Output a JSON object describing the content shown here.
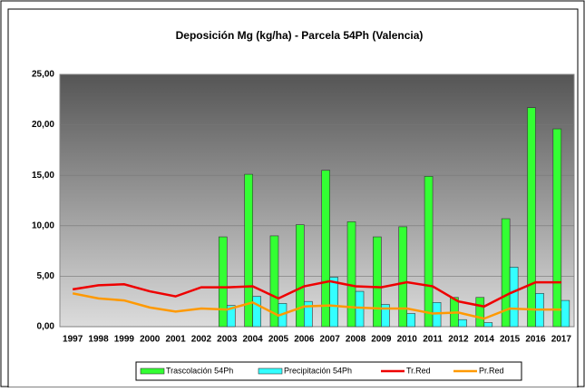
{
  "chart_data": {
    "type": "bar",
    "title": "Deposición Mg (kg/ha) - Parcela 54Ph (Valencia)",
    "categories": [
      "1997",
      "1998",
      "1999",
      "2000",
      "2001",
      "2002",
      "2003",
      "2004",
      "2005",
      "2006",
      "2007",
      "2008",
      "2009",
      "2010",
      "2011",
      "2012",
      "2014",
      "2015",
      "2016",
      "2017"
    ],
    "series": [
      {
        "name": "Trascolación  54Ph",
        "type": "bar",
        "color": "#33ff33",
        "values": [
          null,
          null,
          null,
          null,
          null,
          null,
          8.9,
          15.1,
          9.0,
          10.1,
          15.5,
          10.4,
          8.9,
          9.9,
          14.9,
          2.9,
          2.9,
          10.7,
          21.7,
          19.6
        ]
      },
      {
        "name": "Precipitación 54Ph",
        "type": "bar",
        "color": "#33ffff",
        "values": [
          null,
          null,
          null,
          null,
          null,
          null,
          2.1,
          3.0,
          2.3,
          2.5,
          4.9,
          3.5,
          2.2,
          1.3,
          2.4,
          0.7,
          0.4,
          5.9,
          3.3,
          2.6
        ]
      },
      {
        "name": "Tr.Red",
        "type": "line",
        "color": "#ee0000",
        "values": [
          3.7,
          4.1,
          4.2,
          3.5,
          3.0,
          3.9,
          3.9,
          4.0,
          2.8,
          4.0,
          4.5,
          4.0,
          3.9,
          4.4,
          4.0,
          2.5,
          2.0,
          3.3,
          4.4,
          4.4
        ]
      },
      {
        "name": "Pr.Red",
        "type": "line",
        "color": "#ff9900",
        "values": [
          3.3,
          2.8,
          2.6,
          1.9,
          1.5,
          1.8,
          1.7,
          2.4,
          1.1,
          2.0,
          2.1,
          1.9,
          1.8,
          1.8,
          1.3,
          1.4,
          0.8,
          1.8,
          1.7,
          1.7
        ]
      }
    ],
    "ylim": [
      0,
      25
    ],
    "yticks": [
      {
        "value": 0,
        "label": "0,00"
      },
      {
        "value": 5,
        "label": "5,00"
      },
      {
        "value": 10,
        "label": "10,00"
      },
      {
        "value": 15,
        "label": "15,00"
      },
      {
        "value": 20,
        "label": "20,00"
      },
      {
        "value": 25,
        "label": "25,00"
      }
    ],
    "grid": true,
    "legend": "bottom"
  }
}
